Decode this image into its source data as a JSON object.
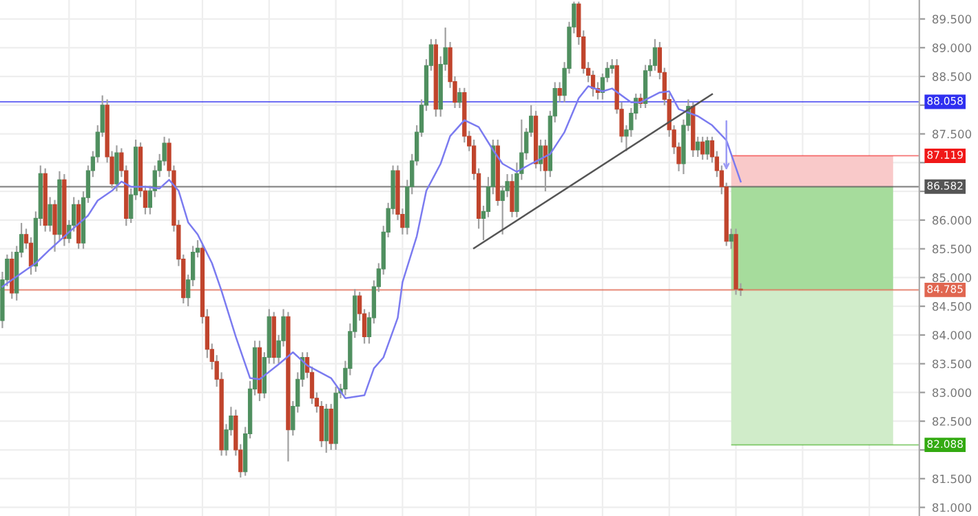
{
  "chart_data": {
    "type": "candlestick",
    "categories": [
      null,
      null,
      null,
      null,
      null,
      null,
      null,
      null,
      null,
      null,
      null,
      null,
      null,
      null,
      null,
      null,
      null,
      null,
      null,
      null,
      null,
      null,
      null,
      null,
      null,
      null,
      null,
      null,
      null,
      null,
      null,
      null,
      null,
      null,
      null,
      null,
      null,
      null,
      null,
      null,
      null,
      null,
      null,
      null,
      null,
      null,
      null,
      null,
      null,
      null,
      null,
      null,
      null,
      null,
      null,
      null,
      null,
      null,
      null,
      null,
      null,
      null,
      null,
      null,
      null,
      null,
      null,
      null,
      null,
      null,
      null,
      null,
      null,
      null,
      null,
      null,
      null,
      null,
      null,
      null,
      null,
      null,
      null,
      null,
      null,
      null,
      null,
      null,
      null,
      null,
      null,
      null,
      null,
      null,
      null,
      null,
      null,
      null,
      null,
      null,
      null,
      null,
      null,
      null,
      null,
      null,
      null,
      null,
      null,
      null,
      null,
      null,
      null,
      null,
      null,
      null,
      null,
      null,
      null,
      null,
      null,
      null,
      null,
      null,
      null,
      null,
      null,
      null,
      null,
      null,
      null,
      null,
      null,
      null,
      null,
      null,
      null,
      null,
      null,
      null,
      null,
      null,
      null,
      null,
      null,
      null,
      null,
      null,
      null,
      null,
      null,
      null,
      null,
      null,
      null,
      null,
      null,
      null,
      null,
      null,
      null,
      null,
      null,
      null,
      null,
      null,
      null,
      null,
      null,
      null,
      null,
      null,
      null,
      null,
      null,
      null,
      null,
      null,
      null,
      null,
      null,
      null,
      null,
      null,
      null,
      null,
      null,
      null,
      null,
      null,
      null,
      null,
      null
    ],
    "ohlc": [
      [
        84.25,
        85.1,
        84.12,
        84.96
      ],
      [
        84.96,
        85.4,
        84.85,
        85.32
      ],
      [
        85.32,
        85.45,
        84.63,
        84.73
      ],
      [
        84.73,
        85.55,
        84.6,
        85.44
      ],
      [
        85.44,
        85.95,
        85.35,
        85.75
      ],
      [
        85.75,
        85.85,
        85.5,
        85.6
      ],
      [
        85.6,
        85.7,
        85.05,
        85.2
      ],
      [
        85.2,
        86.15,
        85.1,
        86.03
      ],
      [
        86.03,
        86.95,
        85.9,
        86.81
      ],
      [
        86.81,
        86.9,
        85.8,
        85.91
      ],
      [
        85.91,
        86.4,
        85.8,
        86.27
      ],
      [
        86.27,
        86.35,
        85.45,
        85.75
      ],
      [
        85.75,
        86.85,
        85.65,
        86.7
      ],
      [
        86.7,
        86.8,
        85.55,
        85.68
      ],
      [
        85.68,
        86.0,
        85.6,
        85.91
      ],
      [
        85.91,
        86.4,
        85.8,
        86.27
      ],
      [
        86.27,
        86.35,
        85.5,
        85.6
      ],
      [
        85.6,
        86.5,
        85.5,
        86.39
      ],
      [
        86.39,
        86.95,
        86.3,
        86.86
      ],
      [
        86.86,
        87.2,
        86.75,
        87.1
      ],
      [
        87.1,
        87.65,
        87.0,
        87.53
      ],
      [
        87.53,
        88.17,
        87.45,
        88.0
      ],
      [
        88.0,
        88.1,
        87.0,
        87.1
      ],
      [
        87.1,
        87.2,
        86.55,
        86.63
      ],
      [
        86.63,
        87.3,
        86.5,
        87.17
      ],
      [
        87.17,
        87.25,
        86.75,
        86.86
      ],
      [
        86.86,
        86.95,
        85.9,
        86.03
      ],
      [
        86.03,
        86.55,
        85.95,
        86.44
      ],
      [
        86.44,
        87.4,
        86.35,
        87.27
      ],
      [
        87.27,
        87.35,
        86.4,
        86.51
      ],
      [
        86.51,
        86.6,
        86.1,
        86.22
      ],
      [
        86.22,
        86.6,
        86.1,
        86.51
      ],
      [
        86.51,
        86.95,
        86.4,
        86.86
      ],
      [
        86.86,
        87.15,
        86.75,
        87.03
      ],
      [
        87.03,
        87.45,
        86.95,
        87.34
      ],
      [
        87.34,
        87.42,
        86.75,
        86.86
      ],
      [
        86.86,
        86.95,
        85.8,
        85.91
      ],
      [
        85.91,
        86.0,
        85.2,
        85.32
      ],
      [
        85.32,
        85.4,
        84.55,
        84.65
      ],
      [
        84.65,
        85.05,
        84.5,
        84.96
      ],
      [
        84.96,
        85.55,
        84.85,
        85.44
      ],
      [
        85.44,
        85.65,
        85.35,
        85.51
      ],
      [
        85.51,
        85.6,
        84.2,
        84.32
      ],
      [
        84.32,
        84.45,
        83.6,
        83.75
      ],
      [
        83.75,
        83.85,
        83.4,
        83.54
      ],
      [
        83.54,
        83.65,
        83.1,
        83.23
      ],
      [
        83.23,
        83.35,
        81.9,
        82.0
      ],
      [
        82.0,
        82.45,
        81.9,
        82.35
      ],
      [
        82.35,
        82.75,
        82.25,
        82.59
      ],
      [
        82.59,
        82.7,
        81.9,
        82.0
      ],
      [
        82.0,
        82.1,
        81.52,
        81.62
      ],
      [
        81.62,
        82.4,
        81.55,
        82.28
      ],
      [
        82.28,
        83.2,
        82.2,
        83.06
      ],
      [
        83.06,
        83.9,
        82.95,
        83.78
      ],
      [
        83.78,
        83.9,
        82.85,
        82.99
      ],
      [
        82.99,
        83.7,
        82.9,
        83.61
      ],
      [
        83.61,
        84.45,
        83.5,
        84.32
      ],
      [
        84.32,
        84.4,
        83.5,
        83.61
      ],
      [
        83.61,
        84.0,
        83.5,
        83.9
      ],
      [
        83.9,
        84.45,
        83.8,
        84.32
      ],
      [
        84.32,
        84.4,
        81.8,
        82.35
      ],
      [
        82.35,
        82.85,
        82.25,
        82.76
      ],
      [
        82.76,
        83.35,
        82.65,
        83.23
      ],
      [
        83.23,
        83.7,
        83.1,
        83.61
      ],
      [
        83.61,
        83.7,
        83.25,
        83.35
      ],
      [
        83.35,
        83.45,
        82.8,
        82.9
      ],
      [
        82.9,
        83.0,
        82.65,
        82.76
      ],
      [
        82.76,
        82.85,
        82.05,
        82.16
      ],
      [
        82.16,
        82.8,
        81.95,
        82.71
      ],
      [
        82.71,
        82.8,
        82.0,
        82.11
      ],
      [
        82.11,
        83.1,
        82.0,
        82.99
      ],
      [
        82.99,
        83.15,
        82.9,
        83.06
      ],
      [
        83.06,
        83.55,
        82.95,
        83.42
      ],
      [
        83.42,
        84.2,
        83.3,
        84.06
      ],
      [
        84.06,
        84.8,
        83.95,
        84.68
      ],
      [
        84.68,
        84.75,
        84.25,
        84.37
      ],
      [
        84.37,
        84.45,
        83.85,
        83.97
      ],
      [
        83.97,
        84.4,
        83.85,
        84.3
      ],
      [
        84.3,
        84.95,
        84.2,
        84.84
      ],
      [
        84.84,
        85.25,
        84.75,
        85.15
      ],
      [
        85.15,
        85.9,
        85.05,
        85.79
      ],
      [
        85.79,
        86.3,
        85.7,
        86.2
      ],
      [
        86.2,
        86.95,
        86.1,
        86.86
      ],
      [
        86.86,
        86.95,
        86.0,
        86.1
      ],
      [
        86.1,
        86.2,
        85.75,
        85.87
      ],
      [
        85.87,
        86.7,
        85.75,
        86.58
      ],
      [
        86.58,
        87.15,
        86.45,
        87.03
      ],
      [
        87.03,
        87.65,
        86.95,
        87.53
      ],
      [
        87.53,
        88.1,
        87.45,
        88.0
      ],
      [
        88.0,
        88.8,
        87.9,
        88.69
      ],
      [
        88.69,
        89.15,
        88.6,
        89.05
      ],
      [
        89.05,
        89.15,
        87.8,
        87.93
      ],
      [
        87.93,
        88.85,
        87.8,
        88.71
      ],
      [
        88.71,
        89.35,
        88.6,
        89.0
      ],
      [
        89.0,
        89.1,
        88.3,
        88.41
      ],
      [
        88.41,
        88.5,
        87.95,
        88.05
      ],
      [
        88.05,
        88.3,
        87.95,
        88.22
      ],
      [
        88.22,
        88.3,
        87.35,
        87.46
      ],
      [
        87.46,
        87.55,
        87.2,
        87.29
      ],
      [
        87.29,
        87.4,
        86.7,
        86.81
      ],
      [
        86.81,
        86.9,
        85.85,
        86.03
      ],
      [
        86.03,
        86.25,
        85.65,
        86.15
      ],
      [
        86.15,
        86.75,
        86.05,
        86.58
      ],
      [
        86.58,
        87.4,
        86.45,
        87.29
      ],
      [
        87.29,
        87.4,
        86.25,
        86.34
      ],
      [
        86.34,
        86.6,
        85.75,
        86.51
      ],
      [
        86.51,
        86.8,
        86.4,
        86.67
      ],
      [
        86.67,
        86.8,
        86.05,
        86.15
      ],
      [
        86.15,
        87.0,
        86.05,
        86.81
      ],
      [
        86.81,
        87.75,
        86.7,
        87.17
      ],
      [
        87.17,
        87.6,
        87.05,
        87.53
      ],
      [
        87.53,
        88.0,
        87.45,
        87.81
      ],
      [
        87.81,
        87.9,
        86.9,
        86.98
      ],
      [
        86.98,
        87.4,
        86.85,
        87.29
      ],
      [
        87.29,
        87.4,
        86.5,
        86.86
      ],
      [
        86.86,
        87.9,
        86.75,
        87.81
      ],
      [
        87.81,
        88.4,
        87.7,
        88.29
      ],
      [
        88.29,
        88.4,
        88.05,
        88.17
      ],
      [
        88.17,
        88.75,
        88.05,
        88.64
      ],
      [
        88.64,
        89.45,
        88.55,
        89.36
      ],
      [
        89.36,
        89.8,
        89.25,
        89.76
      ],
      [
        89.76,
        89.8,
        89.05,
        89.19
      ],
      [
        89.19,
        89.3,
        88.55,
        88.64
      ],
      [
        88.64,
        88.75,
        88.4,
        88.52
      ],
      [
        88.52,
        88.6,
        88.15,
        88.29
      ],
      [
        88.29,
        88.4,
        88.1,
        88.22
      ],
      [
        88.22,
        88.55,
        88.1,
        88.48
      ],
      [
        88.48,
        88.75,
        88.4,
        88.64
      ],
      [
        88.64,
        88.8,
        88.55,
        88.69
      ],
      [
        88.69,
        88.8,
        87.85,
        87.93
      ],
      [
        87.93,
        88.05,
        87.35,
        87.46
      ],
      [
        87.46,
        87.65,
        87.2,
        87.57
      ],
      [
        87.57,
        87.95,
        87.45,
        87.86
      ],
      [
        87.86,
        88.2,
        87.75,
        88.12
      ],
      [
        88.12,
        88.2,
        87.95,
        88.03
      ],
      [
        88.03,
        88.7,
        87.95,
        88.6
      ],
      [
        88.6,
        88.8,
        88.5,
        88.69
      ],
      [
        88.69,
        89.15,
        88.6,
        89.0
      ],
      [
        89.0,
        89.1,
        88.45,
        88.57
      ],
      [
        88.57,
        88.65,
        88.0,
        88.1
      ],
      [
        88.1,
        88.2,
        87.45,
        87.57
      ],
      [
        87.57,
        87.65,
        87.15,
        87.27
      ],
      [
        87.27,
        87.35,
        86.85,
        86.98
      ],
      [
        86.98,
        87.75,
        86.8,
        87.65
      ],
      [
        87.65,
        88.1,
        87.55,
        87.98
      ],
      [
        87.98,
        88.05,
        87.1,
        87.22
      ],
      [
        87.22,
        87.45,
        87.1,
        87.36
      ],
      [
        87.36,
        87.45,
        87.05,
        87.15
      ],
      [
        87.15,
        87.45,
        87.05,
        87.38
      ],
      [
        87.38,
        87.45,
        87.0,
        87.1
      ],
      [
        87.1,
        87.2,
        86.75,
        86.86
      ],
      [
        86.86,
        86.95,
        86.45,
        86.58
      ],
      [
        86.58,
        86.65,
        85.55,
        85.63
      ],
      [
        85.63,
        85.85,
        85.5,
        85.75
      ],
      [
        85.75,
        85.85,
        84.7,
        84.8
      ],
      [
        84.8,
        84.9,
        84.68,
        84.78
      ],
      null,
      null,
      null,
      null,
      null,
      null,
      null,
      null,
      null,
      null,
      null,
      null,
      null,
      null,
      null,
      null,
      null,
      null,
      null,
      null,
      null,
      null,
      null,
      null,
      null,
      null,
      null,
      null,
      null,
      null,
      null,
      null,
      null,
      null,
      null,
      null,
      null
    ],
    "colors": [
      "#4f8f5f",
      "#4f8f5f",
      "#c0442c",
      "#4f8f5f",
      "#4f8f5f",
      "#c0442c",
      "#c0442c",
      "#4f8f5f",
      "#4f8f5f",
      "#c0442c",
      "#4f8f5f",
      "#c0442c",
      "#4f8f5f",
      "#c0442c",
      "#4f8f5f",
      "#4f8f5f",
      "#c0442c",
      "#4f8f5f",
      "#4f8f5f",
      "#4f8f5f",
      "#4f8f5f",
      "#4f8f5f",
      "#c0442c",
      "#c0442c",
      "#4f8f5f",
      "#c0442c",
      "#c0442c",
      "#4f8f5f",
      "#4f8f5f",
      "#c0442c",
      "#c0442c",
      "#4f8f5f",
      "#4f8f5f",
      "#4f8f5f",
      "#4f8f5f",
      "#c0442c",
      "#c0442c",
      "#c0442c",
      "#c0442c",
      "#4f8f5f",
      "#4f8f5f",
      "#4f8f5f",
      "#c0442c",
      "#c0442c",
      "#c0442c",
      "#c0442c",
      "#c0442c",
      "#4f8f5f",
      "#4f8f5f",
      "#c0442c",
      "#c0442c",
      "#4f8f5f",
      "#4f8f5f",
      "#4f8f5f",
      "#c0442c",
      "#4f8f5f",
      "#4f8f5f",
      "#c0442c",
      "#4f8f5f",
      "#4f8f5f",
      "#c0442c",
      "#4f8f5f",
      "#4f8f5f",
      "#4f8f5f",
      "#c0442c",
      "#c0442c",
      "#c0442c",
      "#c0442c",
      "#4f8f5f",
      "#c0442c",
      "#4f8f5f",
      "#4f8f5f",
      "#4f8f5f",
      "#4f8f5f",
      "#4f8f5f",
      "#c0442c",
      "#c0442c",
      "#4f8f5f",
      "#4f8f5f",
      "#4f8f5f",
      "#4f8f5f",
      "#4f8f5f",
      "#4f8f5f",
      "#c0442c",
      "#c0442c",
      "#4f8f5f",
      "#4f8f5f",
      "#4f8f5f",
      "#4f8f5f",
      "#4f8f5f",
      "#4f8f5f",
      "#c0442c",
      "#4f8f5f",
      "#4f8f5f",
      "#c0442c",
      "#c0442c",
      "#4f8f5f",
      "#c0442c",
      "#c0442c",
      "#c0442c",
      "#c0442c",
      "#4f8f5f",
      "#4f8f5f",
      "#4f8f5f",
      "#c0442c",
      "#4f8f5f",
      "#4f8f5f",
      "#c0442c",
      "#4f8f5f",
      "#4f8f5f",
      "#4f8f5f",
      "#4f8f5f",
      "#c0442c",
      "#4f8f5f",
      "#c0442c",
      "#4f8f5f",
      "#4f8f5f",
      "#c0442c",
      "#4f8f5f",
      "#4f8f5f",
      "#4f8f5f",
      "#c0442c",
      "#c0442c",
      "#c0442c",
      "#c0442c",
      "#c0442c",
      "#4f8f5f",
      "#4f8f5f",
      "#4f8f5f",
      "#c0442c",
      "#c0442c",
      "#4f8f5f",
      "#4f8f5f",
      "#4f8f5f",
      "#c0442c",
      "#4f8f5f",
      "#4f8f5f",
      "#4f8f5f",
      "#c0442c",
      "#c0442c",
      "#c0442c",
      "#c0442c",
      "#c0442c",
      "#4f8f5f",
      "#4f8f5f",
      "#c0442c",
      "#4f8f5f",
      "#c0442c",
      "#4f8f5f",
      "#c0442c",
      "#c0442c",
      "#c0442c",
      "#c0442c",
      "#4f8f5f",
      "#c0442c",
      "#c0442c",
      null,
      null,
      null,
      null,
      null,
      null,
      null,
      null,
      null,
      null,
      null,
      null,
      null,
      null,
      null,
      null,
      null,
      null,
      null,
      null,
      null,
      null,
      null,
      null,
      null,
      null,
      null,
      null,
      null,
      null,
      null,
      null,
      null,
      null,
      null,
      null,
      null
    ],
    "series": [
      {
        "type": "line",
        "color": "#7b7bf0",
        "values": [
          84.84,
          null,
          84.96,
          null,
          null,
          null,
          null,
          85.25,
          null,
          null,
          85.49,
          null,
          null,
          null,
          85.79,
          null,
          null,
          null,
          86.08,
          null,
          86.34,
          null,
          null,
          86.51,
          null,
          86.67,
          null,
          86.58,
          null,
          null,
          86.58,
          null,
          null,
          86.55,
          null,
          86.7,
          null,
          86.51,
          null,
          85.96,
          null,
          85.75,
          null,
          null,
          85.25,
          null,
          84.77,
          null,
          null,
          83.97,
          null,
          null,
          83.25,
          null,
          83.23,
          null,
          null,
          null,
          83.49,
          null,
          null,
          83.7,
          null,
          null,
          83.47,
          null,
          null,
          null,
          null,
          83.25,
          null,
          null,
          82.9,
          null,
          null,
          null,
          82.95,
          null,
          83.42,
          null,
          83.61,
          null,
          null,
          84.3,
          84.92,
          null,
          null,
          85.72,
          null,
          86.51,
          null,
          null,
          86.98,
          null,
          87.46,
          null,
          null,
          87.74,
          null,
          null,
          87.62,
          null,
          null,
          87.22,
          null,
          86.98,
          null,
          null,
          86.84,
          null,
          null,
          86.98,
          null,
          null,
          null,
          87.15,
          null,
          null,
          87.53,
          null,
          null,
          88.12,
          null,
          88.33,
          null,
          null,
          88.24,
          null,
          88.29,
          null,
          null,
          null,
          88.05,
          null,
          88.05,
          null,
          null,
          null,
          88.22,
          null,
          88.24,
          null,
          87.93,
          null,
          null,
          null,
          87.81,
          null,
          null,
          87.65,
          null,
          null,
          87.39,
          null,
          null,
          86.67,
          null,
          null,
          null,
          null,
          null,
          null,
          null,
          null,
          null,
          null,
          null,
          null,
          null,
          null,
          null,
          null,
          null,
          null,
          null,
          null,
          null,
          null,
          null,
          null,
          null,
          null,
          null,
          null,
          null,
          null,
          null,
          null,
          null,
          null,
          null,
          null,
          null
        ]
      },
      {
        "type": "line",
        "color": "#555555",
        "values": [
          null,
          null,
          null,
          null,
          null,
          null,
          null,
          null,
          null,
          null,
          null,
          null,
          null,
          null,
          null,
          null,
          null,
          null,
          null,
          null,
          null,
          null,
          null,
          null,
          null,
          null,
          null,
          null,
          null,
          null,
          null,
          null,
          null,
          null,
          null,
          null,
          null,
          null,
          null,
          null,
          null,
          null,
          null,
          null,
          null,
          null,
          null,
          null,
          null,
          null,
          null,
          null,
          null,
          null,
          null,
          null,
          null,
          null,
          null,
          null,
          null,
          null,
          null,
          null,
          null,
          null,
          null,
          null,
          null,
          null,
          null,
          null,
          null,
          null,
          null,
          null,
          null,
          null,
          null,
          null,
          null,
          null,
          null,
          null,
          null,
          null,
          null,
          null,
          null,
          null,
          null,
          null,
          null,
          null,
          null,
          null,
          null,
          null,
          null,
          85.51,
          null,
          null,
          null,
          null,
          null,
          null,
          null,
          null,
          null,
          null,
          null,
          null,
          null,
          null,
          null,
          null,
          null,
          null,
          null,
          null,
          null,
          null,
          null,
          null,
          null,
          null,
          null,
          null,
          null,
          null,
          null,
          null,
          null,
          null,
          null,
          null,
          null,
          null,
          null,
          null,
          null,
          null,
          null,
          null,
          null,
          null,
          null,
          null,
          null,
          88.19,
          null,
          null,
          null,
          null,
          null,
          null,
          null,
          null,
          null,
          null,
          null,
          null,
          null,
          null,
          null,
          null,
          null,
          null,
          null,
          null,
          null,
          null,
          null,
          null,
          null,
          null,
          null,
          null,
          null,
          null,
          null,
          null,
          null,
          null,
          null,
          null,
          null,
          null,
          null,
          null,
          null,
          null,
          null
        ]
      }
    ],
    "ylim": [
      80.85,
      89.83
    ],
    "yticks": [
      {
        "value": 81.0,
        "label": "81.000"
      },
      {
        "value": 81.5,
        "label": "81.500"
      },
      {
        "value": 82.0,
        "label": null
      },
      {
        "value": 82.5,
        "label": "82.500"
      },
      {
        "value": 83.0,
        "label": "83.000"
      },
      {
        "value": 83.5,
        "label": "83.500"
      },
      {
        "value": 84.0,
        "label": "84.000"
      },
      {
        "value": 84.5,
        "label": "84.500"
      },
      {
        "value": 85.0,
        "label": "85.000"
      },
      {
        "value": 85.5,
        "label": "85.500"
      },
      {
        "value": 86.0,
        "label": "86.000"
      },
      {
        "value": 86.5,
        "label": null
      },
      {
        "value": 87.0,
        "label": null
      },
      {
        "value": 87.5,
        "label": "87.500"
      },
      {
        "value": 88.0,
        "label": null
      },
      {
        "value": 88.5,
        "label": "88.500"
      },
      {
        "value": 89.0,
        "label": "89.000"
      },
      {
        "value": 89.5,
        "label": "89.500"
      }
    ],
    "tick_labels": "y",
    "grid": true,
    "bands": [
      {
        "axis": "y",
        "from": 86.582,
        "to": 87.119,
        "color": "#f9c9c9"
      },
      {
        "axis": "y",
        "from": 84.785,
        "to": 86.582,
        "color": "#a6dc9c"
      },
      {
        "axis": "y",
        "from": 82.088,
        "to": 84.785,
        "color": "#d0ecc9"
      }
    ],
    "ref_lines": [
      {
        "axis": "y",
        "value": 88.058,
        "label": "88.058",
        "color": "#3030f0"
      },
      {
        "axis": "y",
        "value": 87.119,
        "label": "87.119",
        "color": "#f01818"
      },
      {
        "axis": "y",
        "value": 86.582,
        "label": "86.582",
        "color": "#555555"
      },
      {
        "axis": "y",
        "value": 84.785,
        "label": "84.785",
        "color": "#e06650"
      },
      {
        "axis": "y",
        "value": 82.088,
        "label": "82.088",
        "color": "#33aa11"
      }
    ]
  }
}
